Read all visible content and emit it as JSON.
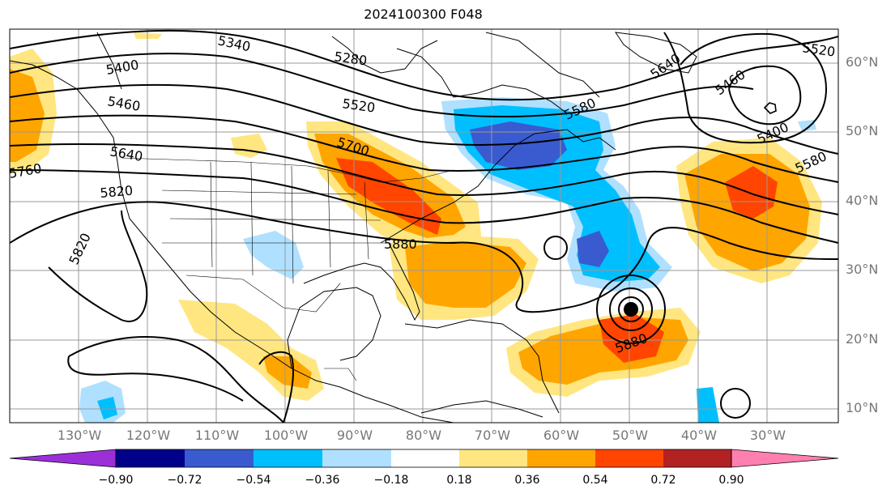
{
  "title": "2024100300 F048",
  "map": {
    "lon_range": [
      -140,
      -25
    ],
    "lat_range": [
      8,
      65
    ],
    "lat_labels": [
      "10°N",
      "20°N",
      "30°N",
      "40°N",
      "50°N",
      "60°N"
    ],
    "lon_labels": [
      "130°W",
      "120°W",
      "110°W",
      "100°W",
      "90°W",
      "80°W",
      "70°W",
      "60°W",
      "50°W",
      "40°W",
      "30°W"
    ],
    "contour_labels": [
      "5340",
      "5280",
      "5400",
      "5460",
      "5520",
      "5520",
      "5580",
      "5580",
      "5640",
      "5640",
      "5460",
      "5400",
      "5700",
      "5760",
      "5820",
      "5820",
      "5880",
      "5880"
    ],
    "contour_interval": 60,
    "fill_field_range": [
      -0.9,
      0.9
    ]
  },
  "colorbar": {
    "ticks": [
      "−0.90",
      "−0.72",
      "−0.54",
      "−0.36",
      "−0.18",
      "0.18",
      "0.36",
      "0.54",
      "0.72",
      "0.90"
    ],
    "colors": [
      "#9b30d9",
      "#00008b",
      "#3a5bd0",
      "#00bfff",
      "#b0e0ff",
      "#ffffff",
      "#ffe680",
      "#ffa500",
      "#ff4500",
      "#b22222",
      "#ff7fb0"
    ],
    "extend": "both"
  }
}
